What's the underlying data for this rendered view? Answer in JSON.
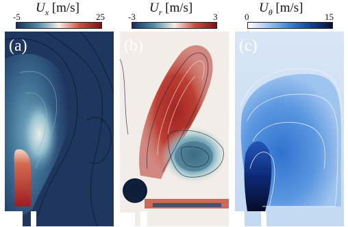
{
  "colorbars": [
    {
      "var": "U",
      "sub": "x",
      "unit": "[m/s]",
      "min": "-5",
      "max": "25",
      "colors": [
        "#1b2c58",
        "#4f8aa8",
        "#f4efe8",
        "#c94d3e",
        "#7f0f16"
      ]
    },
    {
      "var": "U",
      "sub": "r",
      "unit": "[m/s]",
      "min": "-3",
      "max": "3",
      "colors": [
        "#1b2c58",
        "#4f8aa8",
        "#f4efe8",
        "#c94d3e",
        "#7f0f16"
      ]
    },
    {
      "var": "U",
      "sub": "θ",
      "unit": "[m/s]",
      "min": "0",
      "max": "15",
      "colors": [
        "#ffffff",
        "#9cc2ef",
        "#3a7fd6",
        "#123f9a",
        "#07102e"
      ]
    }
  ],
  "panels": [
    {
      "label": "(a)"
    },
    {
      "label": "(b)"
    },
    {
      "label": "(c)"
    }
  ]
}
